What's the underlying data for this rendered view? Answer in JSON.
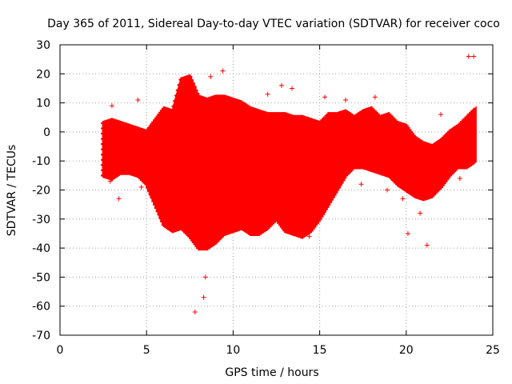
{
  "chart_data": {
    "type": "scatter",
    "title": "Day 365 of 2011, Sidereal Day-to-day VTEC variation (SDTVAR) for receiver coco",
    "xlabel": "GPS time / hours",
    "ylabel": "SDTVAR / TECUs",
    "xlim": [
      0,
      25
    ],
    "ylim": [
      -70,
      30
    ],
    "xticks": [
      0,
      5,
      10,
      15,
      20,
      25
    ],
    "yticks": [
      -70,
      -60,
      -50,
      -40,
      -30,
      -20,
      -10,
      0,
      10,
      20,
      30
    ],
    "grid": true,
    "marker": "+",
    "series_color": "#ff0000",
    "series": [
      {
        "name": "upper envelope",
        "x": [
          2.5,
          3,
          3.5,
          4,
          4.5,
          5,
          5.5,
          6,
          6.5,
          7,
          7.5,
          8,
          8.5,
          9,
          9.5,
          10,
          10.5,
          11,
          11.5,
          12,
          12.5,
          13,
          13.5,
          14,
          14.5,
          15,
          15.5,
          16,
          16.5,
          17,
          17.5,
          18,
          18.5,
          19,
          19.5,
          20,
          20.5,
          21,
          21.5,
          22,
          22.5,
          23,
          23.5,
          24
        ],
        "y": [
          3,
          4,
          3,
          2,
          1,
          0,
          4,
          8,
          7,
          18,
          19,
          12,
          11,
          12,
          12,
          11,
          10,
          8,
          7,
          6,
          6,
          6,
          5,
          5,
          4,
          3,
          6,
          6,
          7,
          5,
          7,
          8,
          5,
          6,
          3,
          2,
          -2,
          -4,
          -5,
          -3,
          0,
          2,
          5,
          8
        ]
      },
      {
        "name": "lower envelope",
        "x": [
          2.5,
          3,
          3.5,
          4,
          4.5,
          5,
          5.5,
          6,
          6.5,
          7,
          7.5,
          8,
          8.5,
          9,
          9.5,
          10,
          10.5,
          11,
          11.5,
          12,
          12.5,
          13,
          13.5,
          14,
          14.5,
          15,
          15.5,
          16,
          16.5,
          17,
          17.5,
          18,
          18.5,
          19,
          19.5,
          20,
          20.5,
          21,
          21.5,
          22,
          22.5,
          23,
          23.5,
          24
        ],
        "y": [
          -15,
          -16,
          -14,
          -14,
          -15,
          -18,
          -25,
          -32,
          -34,
          -33,
          -36,
          -40,
          -40,
          -38,
          -35,
          -34,
          -33,
          -35,
          -35,
          -33,
          -30,
          -34,
          -35,
          -36,
          -34,
          -30,
          -25,
          -20,
          -15,
          -12,
          -12,
          -13,
          -14,
          -15,
          -18,
          -20,
          -22,
          -23,
          -22,
          -19,
          -15,
          -12,
          -12,
          -10
        ]
      },
      {
        "name": "outliers",
        "x": [
          2.9,
          3.0,
          3.4,
          4.5,
          4.7,
          5.3,
          7.8,
          8.3,
          8.4,
          9.4,
          8.7,
          10.1,
          12.0,
          12.8,
          13.4,
          14.0,
          14.4,
          15.3,
          16.5,
          17.4,
          18.2,
          18.9,
          19.8,
          20.1,
          20.8,
          21.2,
          22.0,
          23.1,
          23.6,
          23.9
        ],
        "y": [
          -17,
          9,
          -23,
          11,
          -19,
          -22,
          -62,
          -57,
          -50,
          21,
          19,
          10,
          13,
          16,
          15,
          -35,
          -36,
          12,
          11,
          -18,
          12,
          -20,
          -23,
          -35,
          -28,
          -39,
          6,
          -16,
          26,
          26
        ]
      }
    ]
  }
}
